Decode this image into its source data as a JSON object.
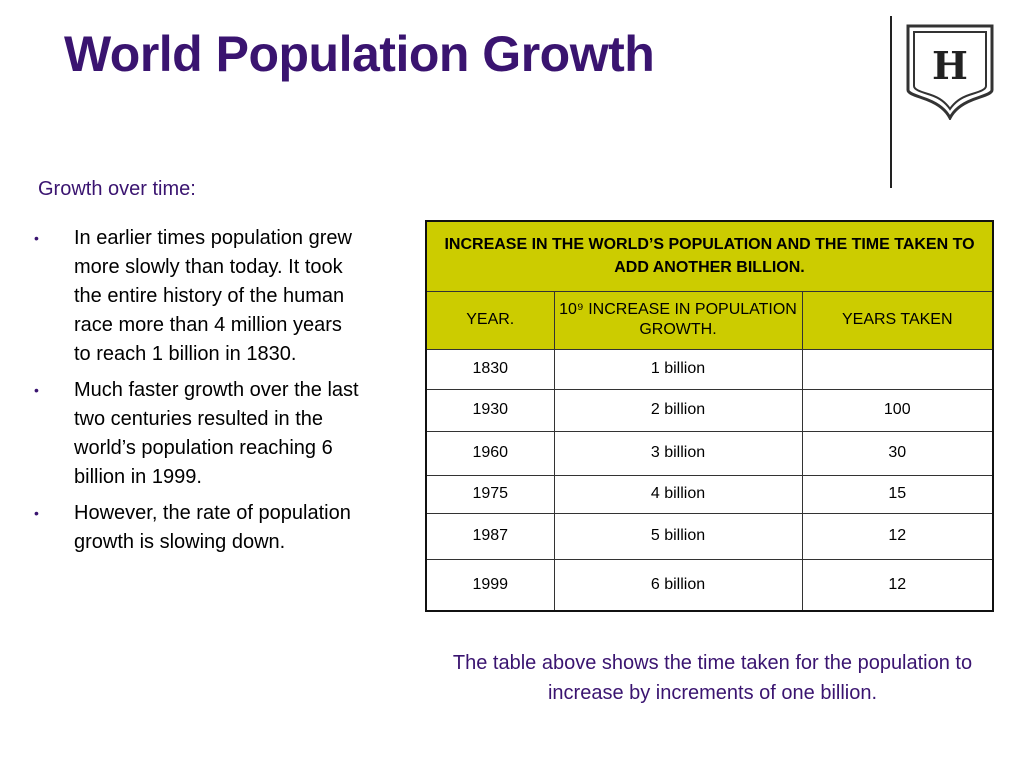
{
  "slide": {
    "title": "World Population Growth",
    "subheading": "Growth over time:",
    "bullets": [
      "In earlier times population grew more slowly than today. It took the entire history of the human race more than 4 million years to reach 1 billion in 1830.",
      "Much faster growth over the last two centuries resulted in the world’s population reaching 6 billion in 1999.",
      "However, the rate of population growth is slowing down."
    ],
    "bullet_symbol": "•",
    "logo_letter": "H",
    "caption": "The table above shows the time taken for the population to increase by increments of one billion."
  },
  "table": {
    "title": "INCREASE IN THE WORLD’S POPULATION AND THE TIME TAKEN TO ADD ANOTHER BILLION.",
    "columns": [
      "YEAR.",
      "10⁹ INCREASE IN POPULATION GROWTH.",
      "YEARS TAKEN"
    ],
    "rows": [
      [
        "1830",
        "1 billion",
        ""
      ],
      [
        "1930",
        "2 billion",
        "100"
      ],
      [
        "1960",
        "3 billion",
        "30"
      ],
      [
        "1975",
        "4 billion",
        "15"
      ],
      [
        "1987",
        "5 billion",
        "12"
      ],
      [
        "1999",
        "6 billion",
        "12"
      ]
    ]
  },
  "colors": {
    "title": "#3a1470",
    "table_header_bg": "#cccc00"
  }
}
